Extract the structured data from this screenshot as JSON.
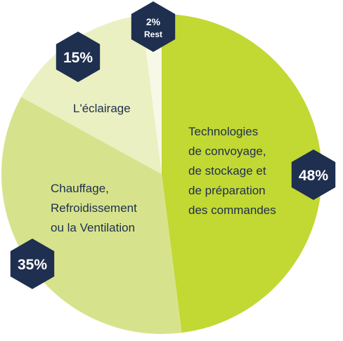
{
  "chart_data": {
    "type": "pie",
    "slices": [
      {
        "label_lines": [
          "Technologies",
          "de convoyage,",
          "de stockage et",
          "de préparation",
          "des commandes"
        ],
        "value": 48,
        "value_label": "48%",
        "color": "#c2d833"
      },
      {
        "label_lines": [
          "Chauffage,",
          "Refroidissement",
          "ou la Ventilation"
        ],
        "value": 35,
        "value_label": "35%",
        "color": "#d7e38c"
      },
      {
        "label_lines": [
          "L'éclairage"
        ],
        "value": 15,
        "value_label": "15%",
        "color": "#eaf0c1"
      },
      {
        "label_lines": [],
        "value": 2,
        "value_label": "2%",
        "sub_label": "Rest",
        "color": "#f7f9e6"
      }
    ]
  },
  "colors": {
    "badge": "#1e2f4f",
    "text": "#1e2f4f",
    "badge_text": "#ffffff"
  }
}
